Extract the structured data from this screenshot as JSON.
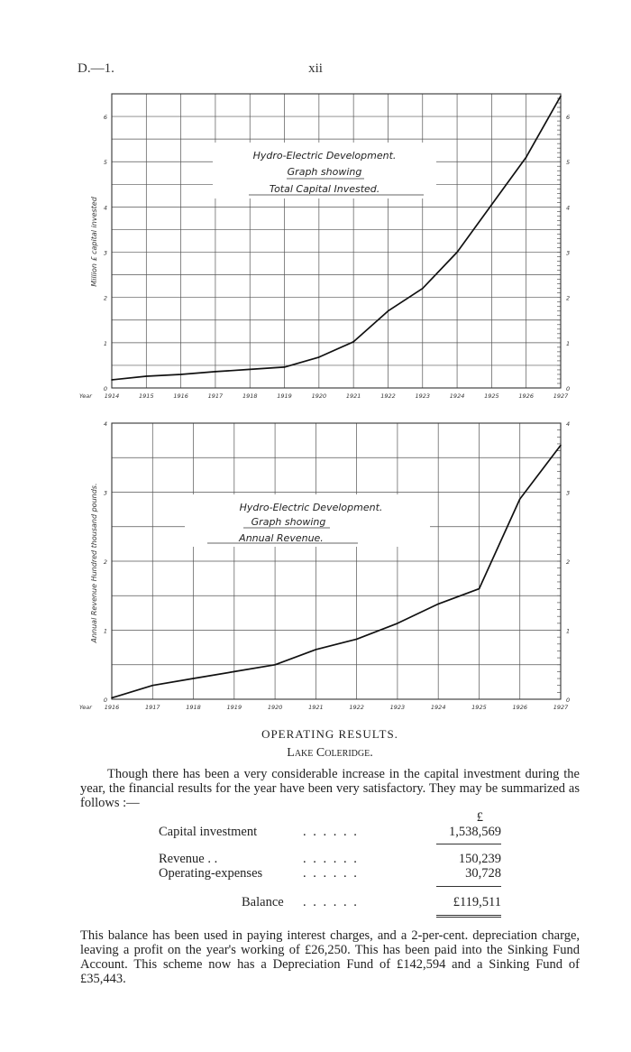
{
  "header": {
    "left": "D.—1.",
    "center": "xii"
  },
  "charts": [
    {
      "title_lines": [
        "Hydro-Electric Development.",
        "Graph showing",
        "Total Capital Invested."
      ],
      "y_axis_label": "Million £ capital invested",
      "x_prefix": "Year",
      "x_ticks": [
        "1914",
        "1915",
        "1916",
        "1917",
        "1918",
        "1919",
        "1920",
        "1921",
        "1922",
        "1923",
        "1924",
        "1925",
        "1926",
        "1927"
      ],
      "y_ticks": [
        "0",
        "1",
        "2",
        "3",
        "4",
        "5",
        "6"
      ]
    },
    {
      "title_lines": [
        "Hydro-Electric Development.",
        "Graph showing",
        "Annual Revenue."
      ],
      "y_axis_label": "Annual Revenue Hundred thousand pounds.",
      "x_prefix": "Year",
      "x_ticks": [
        "1916",
        "1917",
        "1918",
        "1919",
        "1920",
        "1921",
        "1922",
        "1923",
        "1924",
        "1925",
        "1926",
        "1927"
      ],
      "y_ticks": [
        "0",
        "1",
        "2",
        "3",
        "4"
      ]
    }
  ],
  "chart_data": [
    {
      "type": "line",
      "title": "Hydro-Electric Development. Graph showing Total Capital Invested.",
      "xlabel": "Year",
      "ylabel": "Million £ capital invested",
      "x": [
        1914,
        1915,
        1916,
        1917,
        1918,
        1919,
        1920,
        1921,
        1922,
        1923,
        1924,
        1925,
        1926,
        1927
      ],
      "y": [
        0.18,
        0.26,
        0.3,
        0.36,
        0.41,
        0.46,
        0.68,
        1.02,
        1.7,
        2.2,
        3.0,
        4.05,
        5.1,
        6.45
      ],
      "xlim": [
        1914,
        1927
      ],
      "ylim": [
        0,
        6.5
      ],
      "grid": true
    },
    {
      "type": "line",
      "title": "Hydro-Electric Development. Graph showing Annual Revenue.",
      "xlabel": "Year",
      "ylabel": "Annual Revenue Hundred thousand pounds.",
      "x": [
        1916,
        1917,
        1918,
        1919,
        1920,
        1921,
        1922,
        1923,
        1924,
        1925,
        1926,
        1927
      ],
      "y": [
        0.02,
        0.2,
        0.3,
        0.4,
        0.5,
        0.72,
        0.87,
        1.1,
        1.38,
        1.6,
        2.9,
        3.68
      ],
      "xlim": [
        1916,
        1927
      ],
      "ylim": [
        0,
        4
      ],
      "grid": true
    }
  ],
  "text": {
    "section_title": "OPERATING RESULTS.",
    "subsection": "Lake Coleridge.",
    "para1": "Though there has been a very considerable increase in the capital investment during the year, the financial results for the year have been very satisfactory. They may be summarized as follows :—",
    "currency": "£",
    "rows": [
      {
        "label": "Capital investment",
        "dots": ". .        . .        . .",
        "value": "1,538,569"
      },
      {
        "label": "Revenue        . .",
        "dots": ". .        . .        . .",
        "value": "150,239"
      },
      {
        "label": "Operating-expenses",
        "dots": ". .        . .        . .",
        "value": "30,728"
      },
      {
        "label": "Balance",
        "dots": ". .        . .        . .",
        "value": "£119,511"
      }
    ],
    "para2": "This balance has been used in paying interest charges, and a 2-per-cent. depreciation charge, leaving a profit on the year's working of £26,250.  This has been paid into the Sinking Fund Account.  This scheme now has a Depreciation Fund of £142,594 and a Sinking Fund of £35,443."
  }
}
